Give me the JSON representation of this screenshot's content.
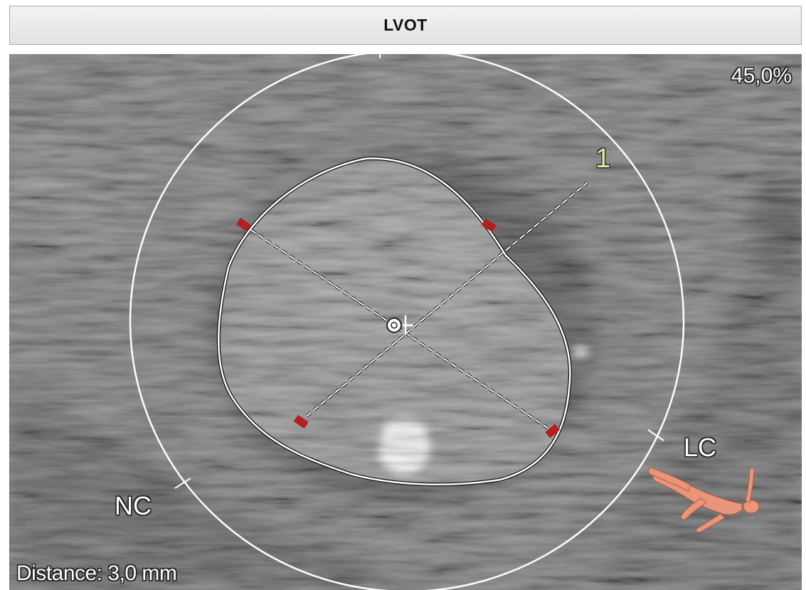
{
  "header": {
    "title": "LVOT"
  },
  "viewport": {
    "phase_label": "45,0%",
    "diameter_marker": "1",
    "cusp_labels": {
      "nc": "NC",
      "lc": "LC"
    },
    "distance_readout": "Distance: 3,0 mm"
  },
  "colors": {
    "annulus_outline": "#ffffff",
    "endpoint_marker": "#b02020",
    "diameter_label": "#e8e59a",
    "orientation_figure": "#e9957a",
    "ct_background": "#6f6f6f"
  },
  "icons": {
    "center": "center-crosshair-icon",
    "orientation": "patient-orientation-icon"
  }
}
